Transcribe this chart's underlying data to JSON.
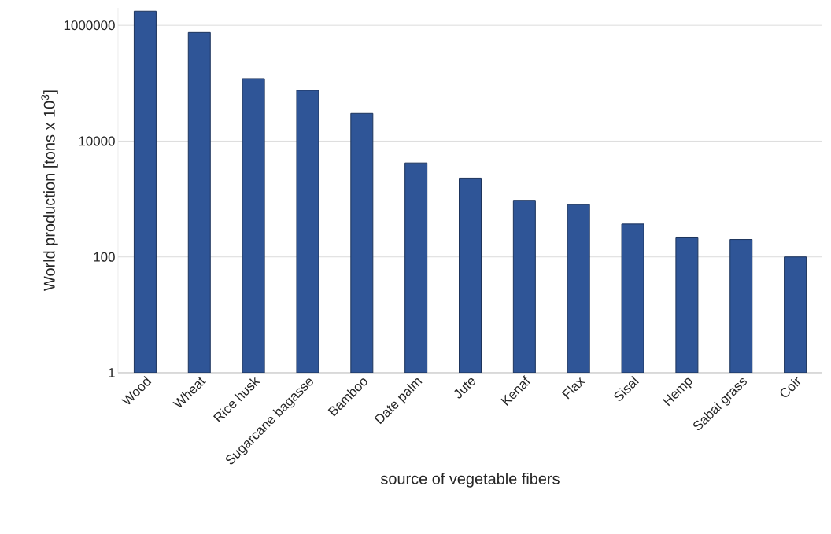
{
  "chart_data": {
    "type": "bar",
    "xlabel": "source of vegetable fibers",
    "ylabel": "World production [tons x 10$^{3}$]",
    "categories": [
      "Wood",
      "Wheat",
      "Rice husk",
      "Sugarcane bagasse",
      "Bamboo",
      "Date palm",
      "Jute",
      "Kenaf",
      "Flax",
      "Sisal",
      "Hemp",
      "Sabai grass",
      "Coir"
    ],
    "values": [
      1750000,
      750000,
      120000,
      75000,
      30000,
      4200,
      2300,
      950,
      800,
      370,
      220,
      200,
      100
    ],
    "color": "#2f5597",
    "log": true,
    "ylim": [
      1,
      2000000
    ],
    "yticks": [
      1,
      100,
      10000,
      1000000
    ],
    "grid": "y"
  }
}
